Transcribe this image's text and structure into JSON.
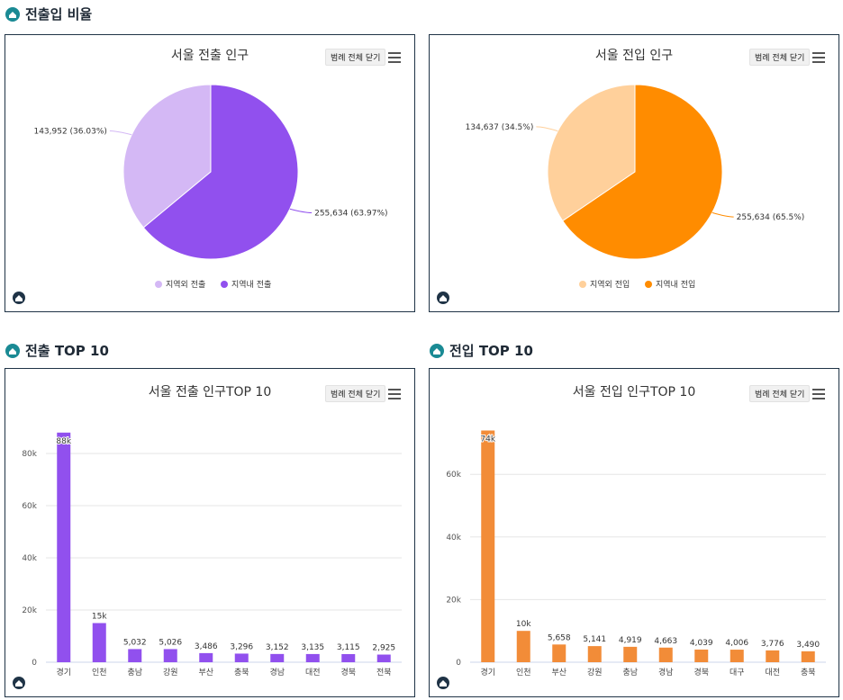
{
  "sections": {
    "ratio_title": "전출입 비율",
    "out_top_title": "전출 TOP 10",
    "in_top_title": "전입 TOP 10"
  },
  "controls": {
    "legend_toggle": "범례 전체 닫기"
  },
  "colors": {
    "out_light": "#d4b8f5",
    "out_dark": "#9150ee",
    "in_light": "#ffd09b",
    "in_dark": "#ff8c00",
    "in_bar": "#f28c38",
    "out_bar": "#9150ee"
  },
  "chart_data": [
    {
      "id": "pie_out",
      "type": "pie",
      "title": "서울 전출 인구",
      "slices": [
        {
          "name": "지역외 전출",
          "value": 143952,
          "label": "143,952 (36.03%)"
        },
        {
          "name": "지역내 전출",
          "value": 255634,
          "label": "255,634 (63.97%)"
        }
      ],
      "legend": [
        "지역외 전출",
        "지역내 전출"
      ]
    },
    {
      "id": "pie_in",
      "type": "pie",
      "title": "서울 전입 인구",
      "slices": [
        {
          "name": "지역외 전입",
          "value": 134637,
          "label": "134,637 (34.5%)"
        },
        {
          "name": "지역내 전입",
          "value": 255634,
          "label": "255,634 (65.5%)"
        }
      ],
      "legend": [
        "지역외 전입",
        "지역내 전입"
      ]
    },
    {
      "id": "bar_out",
      "type": "bar",
      "title": "서울 전출 인구TOP 10",
      "categories": [
        "경기",
        "인천",
        "충남",
        "강원",
        "부산",
        "충북",
        "경남",
        "대전",
        "경북",
        "전북"
      ],
      "values": [
        88000,
        15000,
        5032,
        5026,
        3486,
        3296,
        3152,
        3135,
        3115,
        2925
      ],
      "data_labels": [
        "88k",
        "15k",
        "5,032",
        "5,026",
        "3,486",
        "3,296",
        "3,152",
        "3,135",
        "3,115",
        "2,925"
      ],
      "yticks": [
        "0",
        "20k",
        "40k",
        "60k",
        "80k"
      ],
      "ylim": [
        0,
        90000
      ]
    },
    {
      "id": "bar_in",
      "type": "bar",
      "title": "서울 전입 인구TOP 10",
      "categories": [
        "경기",
        "인천",
        "부산",
        "강원",
        "충남",
        "경남",
        "경북",
        "대구",
        "대전",
        "충북"
      ],
      "values": [
        74000,
        10000,
        5658,
        5141,
        4919,
        4663,
        4039,
        4006,
        3776,
        3490
      ],
      "data_labels": [
        "74k",
        "10k",
        "5,658",
        "5,141",
        "4,919",
        "4,663",
        "4,039",
        "4,006",
        "3,776",
        "3,490"
      ],
      "yticks": [
        "0",
        "20k",
        "40k",
        "60k"
      ],
      "ylim": [
        0,
        75000
      ]
    }
  ]
}
